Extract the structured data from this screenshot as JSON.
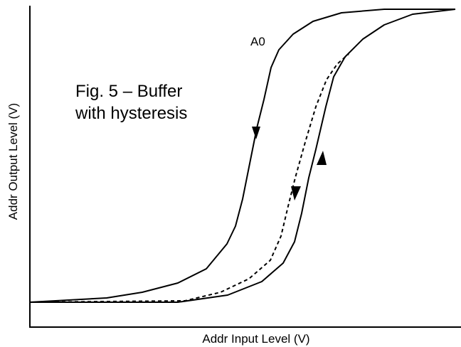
{
  "figure": {
    "curve_label": "A0",
    "caption_line1": "Fig. 5 – Buffer",
    "caption_line2": "with hysteresis",
    "y_axis_label": "Addr Output Level (V)",
    "x_axis_label": "Addr Input Level (V)"
  }
}
